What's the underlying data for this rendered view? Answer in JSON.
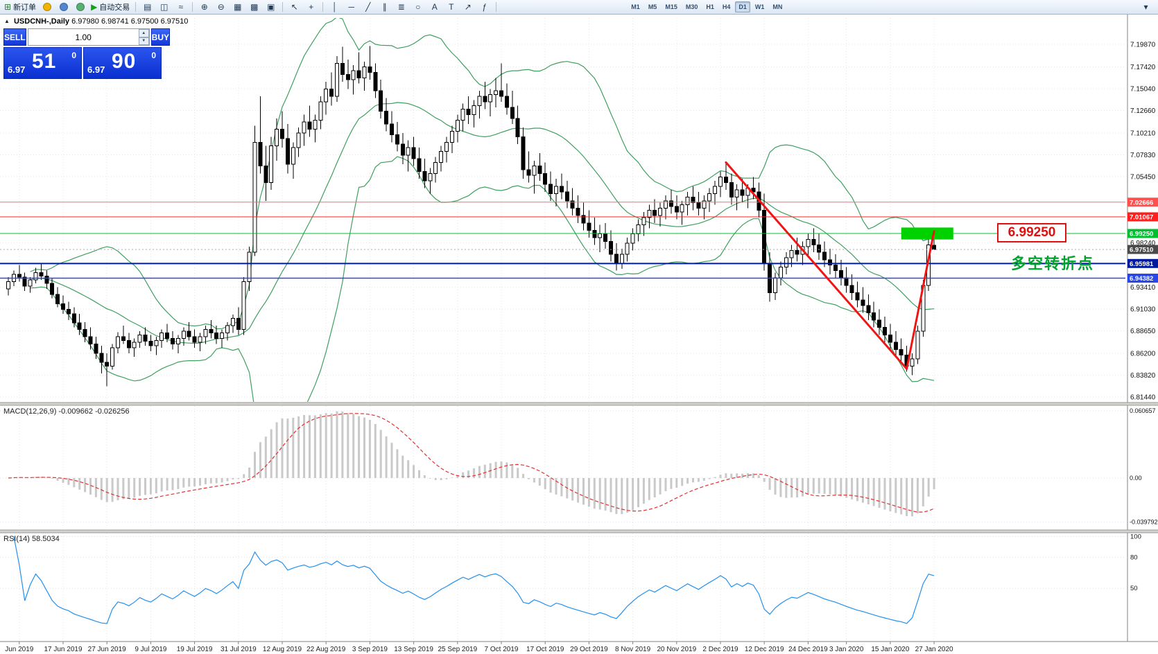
{
  "toolbar": {
    "items": [
      {
        "name": "new-order-button",
        "glyph": "⊞",
        "color": "#2f7d3a",
        "label": "新订单"
      },
      {
        "name": "deposit-icon-button",
        "dot": "#f0b400"
      },
      {
        "name": "community-icon-button",
        "dot": "#4f87d0"
      },
      {
        "name": "alerts-icon-button",
        "dot": "#58b070"
      },
      {
        "name": "autotrading-button",
        "glyph": "▶",
        "color": "#18a018",
        "label": "自动交易"
      },
      {
        "sep": true
      },
      {
        "name": "bar-chart-mode-button",
        "glyph": "▤"
      },
      {
        "name": "candlestick-mode-button",
        "glyph": "◫"
      },
      {
        "name": "line-chart-mode-button",
        "glyph": "≈"
      },
      {
        "sep": true
      },
      {
        "name": "zoom-in-button",
        "glyph": "⊕"
      },
      {
        "name": "zoom-out-button",
        "glyph": "⊖"
      },
      {
        "name": "tile-windows-button",
        "glyph": "▦"
      },
      {
        "name": "cascade-windows-button",
        "glyph": "▩"
      },
      {
        "name": "arrange-button",
        "glyph": "▣"
      },
      {
        "sep": true
      },
      {
        "name": "cursor-tool-button",
        "glyph": "↖"
      },
      {
        "name": "crosshair-tool-button",
        "glyph": "+"
      },
      {
        "sep": true
      },
      {
        "name": "vertical-line-tool-button",
        "glyph": "│"
      },
      {
        "name": "horizontal-line-tool-button",
        "glyph": "─"
      },
      {
        "name": "trendline-tool-button",
        "glyph": "╱"
      },
      {
        "name": "channel-tool-button",
        "glyph": "∥"
      },
      {
        "name": "fibonacci-tool-button",
        "glyph": "≣"
      },
      {
        "name": "shapes-tool-button",
        "glyph": "○"
      },
      {
        "name": "text-tool-button",
        "glyph": "A"
      },
      {
        "name": "label-tool-button",
        "glyph": "T"
      },
      {
        "name": "arrow-tool-button",
        "glyph": "↗"
      },
      {
        "name": "indicators-button",
        "glyph": "ƒ"
      },
      {
        "sep": true
      }
    ],
    "timeframes": [
      "M1",
      "M5",
      "M15",
      "M30",
      "H1",
      "H4",
      "D1",
      "W1",
      "MN"
    ],
    "active_timeframe": "D1",
    "overflow_glyph": "▾"
  },
  "chart": {
    "title": "USDCNH-,Daily",
    "ohlc": "6.97980 6.98741 6.97500 6.97510"
  },
  "trade_panel": {
    "sell_label": "SELL",
    "buy_label": "BUY",
    "volume": "1.00",
    "sell_base": "6.97",
    "sell_pips": "51",
    "sell_pt": "0",
    "buy_base": "6.97",
    "buy_pips": "90",
    "buy_pt": "0"
  },
  "annotations": {
    "price_label": "6.99250",
    "turning_point": "多空转折点"
  },
  "indicators_labels": {
    "macd_label": "MACD(12,26,9) -0.009662 -0.026256",
    "rsi_label": "RSI(14) 58.5034"
  },
  "chart_data": {
    "type": "candlestick",
    "symbol": "USDCNH-",
    "period": "Daily",
    "ohlc_display": {
      "open": "6.97980",
      "high": "6.98741",
      "low": "6.97500",
      "close": "6.97510"
    },
    "ylim": [
      6.809,
      7.2274
    ],
    "y_ticks": [
      "7.19870",
      "7.17420",
      "7.15040",
      "7.12660",
      "7.10210",
      "7.07830",
      "7.05450",
      "6.98240",
      "6.93410",
      "6.91030",
      "6.88650",
      "6.86200",
      "6.83820",
      "6.81440"
    ],
    "x_labels": [
      [
        "Jun 2019",
        2
      ],
      [
        "17 Jun 2019",
        10
      ],
      [
        "27 Jun 2019",
        18
      ],
      [
        "9 Jul 2019",
        26
      ],
      [
        "19 Jul 2019",
        34
      ],
      [
        "31 Jul 2019",
        42
      ],
      [
        "12 Aug 2019",
        50
      ],
      [
        "22 Aug 2019",
        58
      ],
      [
        "3 Sep 2019",
        66
      ],
      [
        "13 Sep 2019",
        74
      ],
      [
        "25 Sep 2019",
        82
      ],
      [
        "7 Oct 2019",
        90
      ],
      [
        "17 Oct 2019",
        98
      ],
      [
        "29 Oct 2019",
        106
      ],
      [
        "8 Nov 2019",
        114
      ],
      [
        "20 Nov 2019",
        122
      ],
      [
        "2 Dec 2019",
        130
      ],
      [
        "12 Dec 2019",
        138
      ],
      [
        "24 Dec 2019",
        146
      ],
      [
        "3 Jan 2020",
        153
      ],
      [
        "15 Jan 2020",
        161
      ],
      [
        "27 Jan 2020",
        169
      ]
    ],
    "candles": [
      [
        6.932,
        6.945,
        6.925,
        6.94
      ],
      [
        6.94,
        6.952,
        6.935,
        6.948
      ],
      [
        6.948,
        6.958,
        6.94,
        6.945
      ],
      [
        6.945,
        6.95,
        6.93,
        6.935
      ],
      [
        6.935,
        6.945,
        6.928,
        6.942
      ],
      [
        6.942,
        6.955,
        6.938,
        6.95
      ],
      [
        6.95,
        6.96,
        6.942,
        6.946
      ],
      [
        6.946,
        6.952,
        6.932,
        6.938
      ],
      [
        6.938,
        6.944,
        6.922,
        6.926
      ],
      [
        6.926,
        6.934,
        6.912,
        6.916
      ],
      [
        6.916,
        6.925,
        6.905,
        6.91
      ],
      [
        6.91,
        6.918,
        6.898,
        6.905
      ],
      [
        6.905,
        6.912,
        6.89,
        6.895
      ],
      [
        6.895,
        6.905,
        6.882,
        6.888
      ],
      [
        6.888,
        6.896,
        6.874,
        6.88
      ],
      [
        6.88,
        6.89,
        6.866,
        6.872
      ],
      [
        6.872,
        6.88,
        6.856,
        6.862
      ],
      [
        6.862,
        6.87,
        6.84,
        6.852
      ],
      [
        6.852,
        6.862,
        6.826,
        6.848
      ],
      [
        6.848,
        6.872,
        6.844,
        6.868
      ],
      [
        6.868,
        6.885,
        6.862,
        6.88
      ],
      [
        6.88,
        6.892,
        6.872,
        6.876
      ],
      [
        6.876,
        6.884,
        6.862,
        6.868
      ],
      [
        6.868,
        6.878,
        6.858,
        6.874
      ],
      [
        6.874,
        6.886,
        6.868,
        6.882
      ],
      [
        6.882,
        6.89,
        6.87,
        6.875
      ],
      [
        6.875,
        6.882,
        6.864,
        6.87
      ],
      [
        6.87,
        6.88,
        6.86,
        6.876
      ],
      [
        6.876,
        6.888,
        6.868,
        6.884
      ],
      [
        6.884,
        6.894,
        6.874,
        6.878
      ],
      [
        6.878,
        6.886,
        6.866,
        6.872
      ],
      [
        6.872,
        6.882,
        6.862,
        6.878
      ],
      [
        6.878,
        6.89,
        6.87,
        6.886
      ],
      [
        6.886,
        6.896,
        6.876,
        6.88
      ],
      [
        6.88,
        6.888,
        6.868,
        6.874
      ],
      [
        6.874,
        6.884,
        6.864,
        6.88
      ],
      [
        6.88,
        6.892,
        6.872,
        6.888
      ],
      [
        6.888,
        6.898,
        6.878,
        6.884
      ],
      [
        6.884,
        6.892,
        6.872,
        6.878
      ],
      [
        6.878,
        6.888,
        6.868,
        6.884
      ],
      [
        6.884,
        6.896,
        6.876,
        6.892
      ],
      [
        6.892,
        6.904,
        6.884,
        6.9
      ],
      [
        6.9,
        6.912,
        6.882,
        6.888
      ],
      [
        6.888,
        6.945,
        6.882,
        6.94
      ],
      [
        6.94,
        6.978,
        6.93,
        6.972
      ],
      [
        6.972,
        7.11,
        6.968,
        7.092
      ],
      [
        7.092,
        7.142,
        7.058,
        7.066
      ],
      [
        7.066,
        7.088,
        7.028,
        7.048
      ],
      [
        7.048,
        7.098,
        7.04,
        7.088
      ],
      [
        7.088,
        7.118,
        7.072,
        7.106
      ],
      [
        7.106,
        7.126,
        7.086,
        7.096
      ],
      [
        7.096,
        7.112,
        7.058,
        7.068
      ],
      [
        7.068,
        7.092,
        7.052,
        7.086
      ],
      [
        7.086,
        7.108,
        7.076,
        7.102
      ],
      [
        7.102,
        7.122,
        7.088,
        7.114
      ],
      [
        7.114,
        7.132,
        7.098,
        7.106
      ],
      [
        7.106,
        7.122,
        7.092,
        7.116
      ],
      [
        7.116,
        7.142,
        7.106,
        7.136
      ],
      [
        7.136,
        7.158,
        7.122,
        7.15
      ],
      [
        7.15,
        7.168,
        7.132,
        7.142
      ],
      [
        7.142,
        7.186,
        7.136,
        7.178
      ],
      [
        7.178,
        7.196,
        7.158,
        7.166
      ],
      [
        7.166,
        7.182,
        7.15,
        7.16
      ],
      [
        7.16,
        7.176,
        7.144,
        7.17
      ],
      [
        7.17,
        7.19,
        7.156,
        7.162
      ],
      [
        7.162,
        7.18,
        7.148,
        7.174
      ],
      [
        7.174,
        7.197,
        7.16,
        7.168
      ],
      [
        7.168,
        7.178,
        7.14,
        7.148
      ],
      [
        7.148,
        7.16,
        7.118,
        7.126
      ],
      [
        7.126,
        7.14,
        7.104,
        7.112
      ],
      [
        7.112,
        7.126,
        7.092,
        7.1
      ],
      [
        7.1,
        7.114,
        7.082,
        7.09
      ],
      [
        7.09,
        7.102,
        7.068,
        7.078
      ],
      [
        7.078,
        7.094,
        7.06,
        7.086
      ],
      [
        7.086,
        7.098,
        7.066,
        7.074
      ],
      [
        7.074,
        7.086,
        7.052,
        7.06
      ],
      [
        7.06,
        7.074,
        7.042,
        7.05
      ],
      [
        7.05,
        7.064,
        7.036,
        7.058
      ],
      [
        7.058,
        7.076,
        7.048,
        7.07
      ],
      [
        7.07,
        7.088,
        7.06,
        7.082
      ],
      [
        7.082,
        7.098,
        7.07,
        7.092
      ],
      [
        7.092,
        7.11,
        7.08,
        7.104
      ],
      [
        7.104,
        7.122,
        7.092,
        7.116
      ],
      [
        7.116,
        7.134,
        7.104,
        7.128
      ],
      [
        7.128,
        7.142,
        7.112,
        7.122
      ],
      [
        7.122,
        7.138,
        7.108,
        7.132
      ],
      [
        7.132,
        7.148,
        7.118,
        7.142
      ],
      [
        7.142,
        7.158,
        7.128,
        7.136
      ],
      [
        7.136,
        7.15,
        7.12,
        7.144
      ],
      [
        7.144,
        7.162,
        7.13,
        7.148
      ],
      [
        7.148,
        7.178,
        7.136,
        7.142
      ],
      [
        7.142,
        7.156,
        7.122,
        7.13
      ],
      [
        7.13,
        7.148,
        7.112,
        7.118
      ],
      [
        7.118,
        7.132,
        7.09,
        7.098
      ],
      [
        7.098,
        7.108,
        7.052,
        7.062
      ],
      [
        7.062,
        7.082,
        7.048,
        7.056
      ],
      [
        7.056,
        7.072,
        7.036,
        7.066
      ],
      [
        7.066,
        7.08,
        7.05,
        7.058
      ],
      [
        7.058,
        7.07,
        7.038,
        7.046
      ],
      [
        7.046,
        7.06,
        7.028,
        7.036
      ],
      [
        7.036,
        7.052,
        7.022,
        7.044
      ],
      [
        7.044,
        7.058,
        7.03,
        7.038
      ],
      [
        7.038,
        7.05,
        7.02,
        7.028
      ],
      [
        7.028,
        7.042,
        7.012,
        7.02
      ],
      [
        7.02,
        7.034,
        7.004,
        7.012
      ],
      [
        7.012,
        7.026,
        6.996,
        7.004
      ],
      [
        7.004,
        7.018,
        6.988,
        6.996
      ],
      [
        6.996,
        7.01,
        6.98,
        6.988
      ],
      [
        6.988,
        7.002,
        6.972,
        6.992
      ],
      [
        6.992,
        7.004,
        6.976,
        6.984
      ],
      [
        6.984,
        6.996,
        6.962,
        6.97
      ],
      [
        6.97,
        6.982,
        6.952,
        6.96
      ],
      [
        6.96,
        6.976,
        6.954,
        6.97
      ],
      [
        6.97,
        6.988,
        6.962,
        6.982
      ],
      [
        6.982,
        6.998,
        6.974,
        6.992
      ],
      [
        6.992,
        7.008,
        6.984,
        7.002
      ],
      [
        7.002,
        7.016,
        6.99,
        7.01
      ],
      [
        7.01,
        7.024,
        6.998,
        7.018
      ],
      [
        7.018,
        7.03,
        7.004,
        7.012
      ],
      [
        7.012,
        7.026,
        7.0,
        7.02
      ],
      [
        7.02,
        7.034,
        7.008,
        7.028
      ],
      [
        7.028,
        7.04,
        7.014,
        7.022
      ],
      [
        7.022,
        7.034,
        7.008,
        7.016
      ],
      [
        7.016,
        7.028,
        7.002,
        7.024
      ],
      [
        7.024,
        7.038,
        7.012,
        7.032
      ],
      [
        7.032,
        7.044,
        7.018,
        7.026
      ],
      [
        7.026,
        7.038,
        7.012,
        7.02
      ],
      [
        7.02,
        7.034,
        7.008,
        7.028
      ],
      [
        7.028,
        7.042,
        7.016,
        7.036
      ],
      [
        7.036,
        7.05,
        7.024,
        7.044
      ],
      [
        7.044,
        7.06,
        7.032,
        7.054
      ],
      [
        7.054,
        7.07,
        7.04,
        7.048
      ],
      [
        7.048,
        7.058,
        7.024,
        7.032
      ],
      [
        7.032,
        7.046,
        7.018,
        7.04
      ],
      [
        7.04,
        7.052,
        7.026,
        7.034
      ],
      [
        7.034,
        7.046,
        7.02,
        7.042
      ],
      [
        7.042,
        7.054,
        7.03,
        7.038
      ],
      [
        7.038,
        7.048,
        7.01,
        7.018
      ],
      [
        7.018,
        7.036,
        6.952,
        6.96
      ],
      [
        6.96,
        6.972,
        6.918,
        6.928
      ],
      [
        6.928,
        6.95,
        6.92,
        6.944
      ],
      [
        6.944,
        6.962,
        6.936,
        6.956
      ],
      [
        6.956,
        6.972,
        6.948,
        6.966
      ],
      [
        6.966,
        6.98,
        6.956,
        6.974
      ],
      [
        6.974,
        6.988,
        6.962,
        6.97
      ],
      [
        6.97,
        6.984,
        6.958,
        6.978
      ],
      [
        6.978,
        6.992,
        6.966,
        6.986
      ],
      [
        6.986,
        6.998,
        6.972,
        6.98
      ],
      [
        6.98,
        6.992,
        6.964,
        6.972
      ],
      [
        6.972,
        6.984,
        6.956,
        6.964
      ],
      [
        6.964,
        6.976,
        6.948,
        6.958
      ],
      [
        6.958,
        6.97,
        6.944,
        6.952
      ],
      [
        6.952,
        6.964,
        6.936,
        6.944
      ],
      [
        6.944,
        6.956,
        6.928,
        6.936
      ],
      [
        6.936,
        6.948,
        6.92,
        6.928
      ],
      [
        6.928,
        6.94,
        6.912,
        6.92
      ],
      [
        6.92,
        6.934,
        6.906,
        6.914
      ],
      [
        6.914,
        6.926,
        6.898,
        6.906
      ],
      [
        6.906,
        6.918,
        6.89,
        6.898
      ],
      [
        6.898,
        6.91,
        6.882,
        6.89
      ],
      [
        6.89,
        6.902,
        6.874,
        6.882
      ],
      [
        6.882,
        6.894,
        6.866,
        6.874
      ],
      [
        6.874,
        6.886,
        6.858,
        6.866
      ],
      [
        6.866,
        6.878,
        6.852,
        6.86
      ],
      [
        6.86,
        6.87,
        6.842,
        6.848
      ],
      [
        6.848,
        6.862,
        6.838,
        6.856
      ],
      [
        6.856,
        6.892,
        6.85,
        6.886
      ],
      [
        6.886,
        6.942,
        6.88,
        6.936
      ],
      [
        6.936,
        6.986,
        6.93,
        6.98
      ],
      [
        6.9798,
        6.98741,
        6.975,
        6.9751
      ]
    ],
    "levels": [
      {
        "label": "7.02666",
        "price": 7.02666,
        "line_color": "#ff6a6a",
        "badge_color": "#ff5050",
        "style": "solid",
        "width": 1
      },
      {
        "label": "7.01067",
        "price": 7.01067,
        "line_color": "#ff2222",
        "badge_color": "#ff1f1f",
        "style": "solid",
        "width": 1
      },
      {
        "label": "6.99250",
        "price": 6.9925,
        "line_color": "#00c030",
        "badge_color": "#00c030",
        "style": "solid",
        "width": 1
      },
      {
        "label": "6.97510",
        "price": 6.9751,
        "line_color": "#aaaaaa",
        "badge_color": "#4a4a4a",
        "style": "dotted",
        "width": 1
      },
      {
        "label": "6.95981",
        "price": 6.95981,
        "line_color": "#001a9e",
        "badge_color": "#001a9e",
        "style": "solid",
        "width": 2
      },
      {
        "label": "6.94382",
        "price": 6.94382,
        "line_color": "#2a46e8",
        "badge_color": "#2a46e8",
        "style": "solid",
        "width": 1.5
      }
    ],
    "trend_lines": [
      {
        "i1": 131,
        "p1": 7.07,
        "i2": 164,
        "p2": 6.845
      },
      {
        "i1": 164,
        "p1": 6.845,
        "i2": 169,
        "p2": 6.995
      }
    ],
    "highlight_box": {
      "i1": 163,
      "i2": 172.5,
      "price_top": 6.999,
      "price_bottom": 6.986
    },
    "indicators": {
      "bollinger": {
        "period": 20,
        "deviation": 2,
        "color": "#3f9f5f"
      },
      "macd": {
        "fast": 12,
        "slow": 26,
        "signal": 9,
        "main_value": "-0.009662",
        "signal_value": "-0.026256",
        "ylim": [
          -0.04625,
          0.065
        ],
        "y_ticks": [
          "0.060657",
          "0.00",
          "-0.039792"
        ],
        "bar_color": "#c9c9c9",
        "signal_color": "#e03030"
      },
      "rsi": {
        "period": 14,
        "value": "58.5034",
        "ylim": [
          0,
          103
        ],
        "y_ticks": [
          "100",
          "80",
          "50"
        ],
        "color": "#2090f0"
      }
    },
    "colors": {
      "bull": "#ffffff",
      "bear": "#000000",
      "outline": "#000000",
      "grid": "#e6e6e6",
      "trend": "#f01414",
      "box": "#00d200",
      "axis_text": "#111111"
    }
  }
}
